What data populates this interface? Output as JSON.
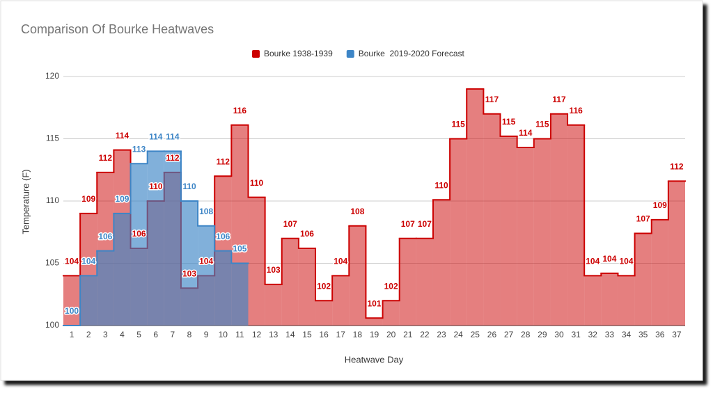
{
  "chart_data": {
    "type": "stepped-area",
    "title": "Comparison Of Bourke Heatwaves",
    "x_label": "Heatwave Day",
    "y_label": "Temperature (F)",
    "categories": [
      "1",
      "2",
      "3",
      "4",
      "5",
      "6",
      "7",
      "8",
      "9",
      "10",
      "11",
      "12",
      "13",
      "14",
      "15",
      "16",
      "17",
      "18",
      "19",
      "20",
      "21",
      "22",
      "23",
      "24",
      "25",
      "26",
      "27",
      "28",
      "29",
      "30",
      "31",
      "32",
      "33",
      "34",
      "35",
      "36",
      "37"
    ],
    "series": [
      {
        "name": "Bourke 1938-1939",
        "color": "#cc0000",
        "values": [
          104,
          109,
          112.3,
          114.1,
          106.2,
          110,
          112.3,
          103,
          104,
          112,
          116.1,
          110.3,
          103.3,
          107,
          106.2,
          102,
          104,
          108,
          100.6,
          102,
          107,
          107,
          110.1,
          115,
          119,
          117,
          115.2,
          114.3,
          115,
          117,
          116.1,
          104,
          104.2,
          104,
          107.4,
          108.5,
          111.6
        ],
        "value_labels": [
          "104",
          "109",
          "112",
          "114",
          "106",
          "110",
          "112",
          "103",
          "104",
          "112",
          "116",
          "110",
          "103",
          "107",
          "106",
          "102",
          "104",
          "108",
          "101",
          "102",
          "107",
          "107",
          "110",
          "115",
          null,
          "117",
          "115",
          "114",
          "115",
          "117",
          "116",
          "104",
          "104",
          "104",
          "107",
          "109",
          "112"
        ]
      },
      {
        "name": "Bourke  2019-2020 Forecast",
        "color": "#3d85c6",
        "values": [
          100,
          104,
          106,
          109,
          113,
          114,
          114,
          110,
          108,
          106,
          105,
          null,
          null,
          null,
          null,
          null,
          null,
          null,
          null,
          null,
          null,
          null,
          null,
          null,
          null,
          null,
          null,
          null,
          null,
          null,
          null,
          null,
          null,
          null,
          null,
          null,
          null
        ],
        "value_labels": [
          "100",
          "104",
          "106",
          "109",
          "113",
          "114",
          "114",
          "110",
          "108",
          "106",
          "105",
          null,
          null,
          null,
          null,
          null,
          null,
          null,
          null,
          null,
          null,
          null,
          null,
          null,
          null,
          null,
          null,
          null,
          null,
          null,
          null,
          null,
          null,
          null,
          null,
          null,
          null
        ]
      }
    ],
    "ylim": [
      100,
      120
    ],
    "yticks": [
      100,
      105,
      110,
      115,
      120
    ],
    "grid": true,
    "legend": "top"
  }
}
